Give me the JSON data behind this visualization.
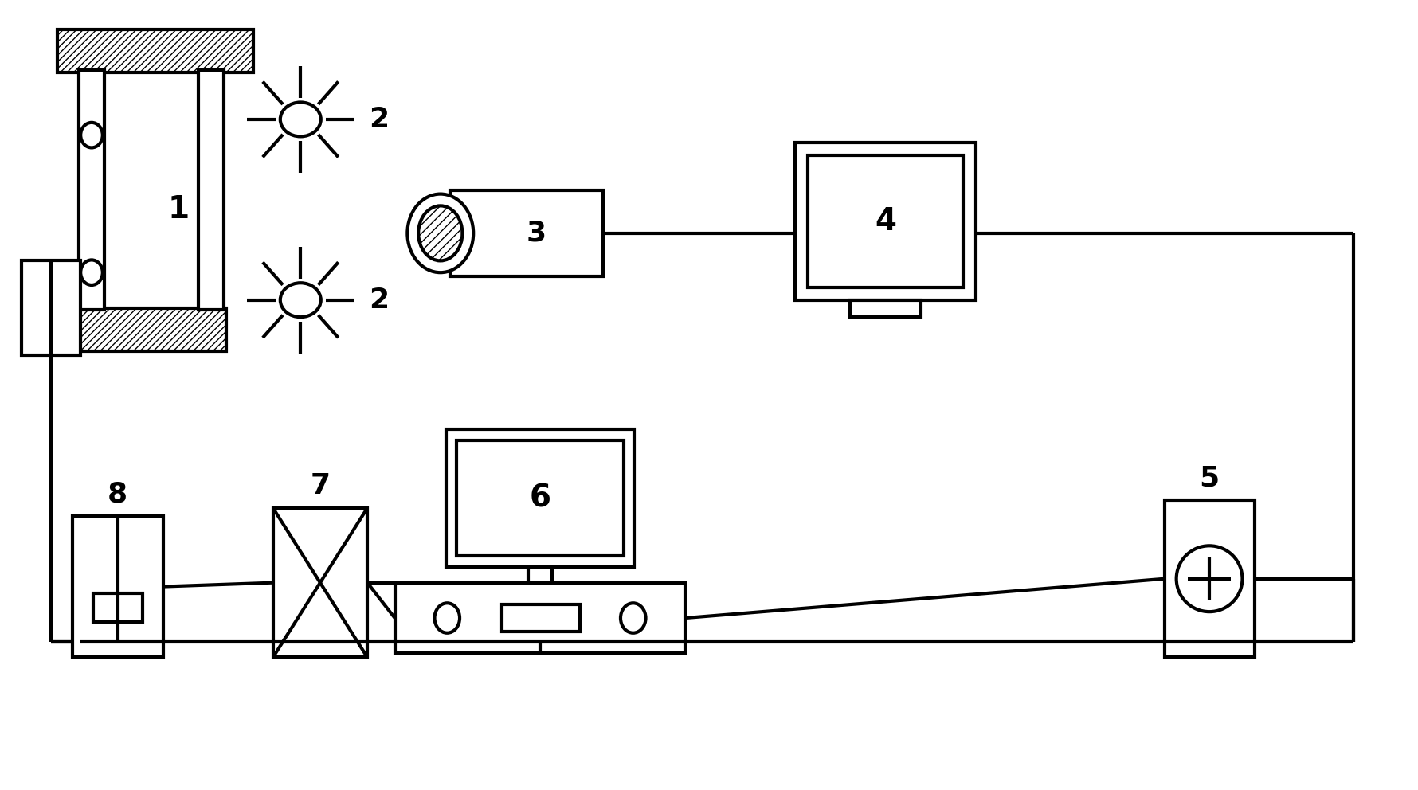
{
  "bg_color": "#ffffff",
  "lw": 3.0,
  "fig_w": 17.8,
  "fig_h": 9.92
}
